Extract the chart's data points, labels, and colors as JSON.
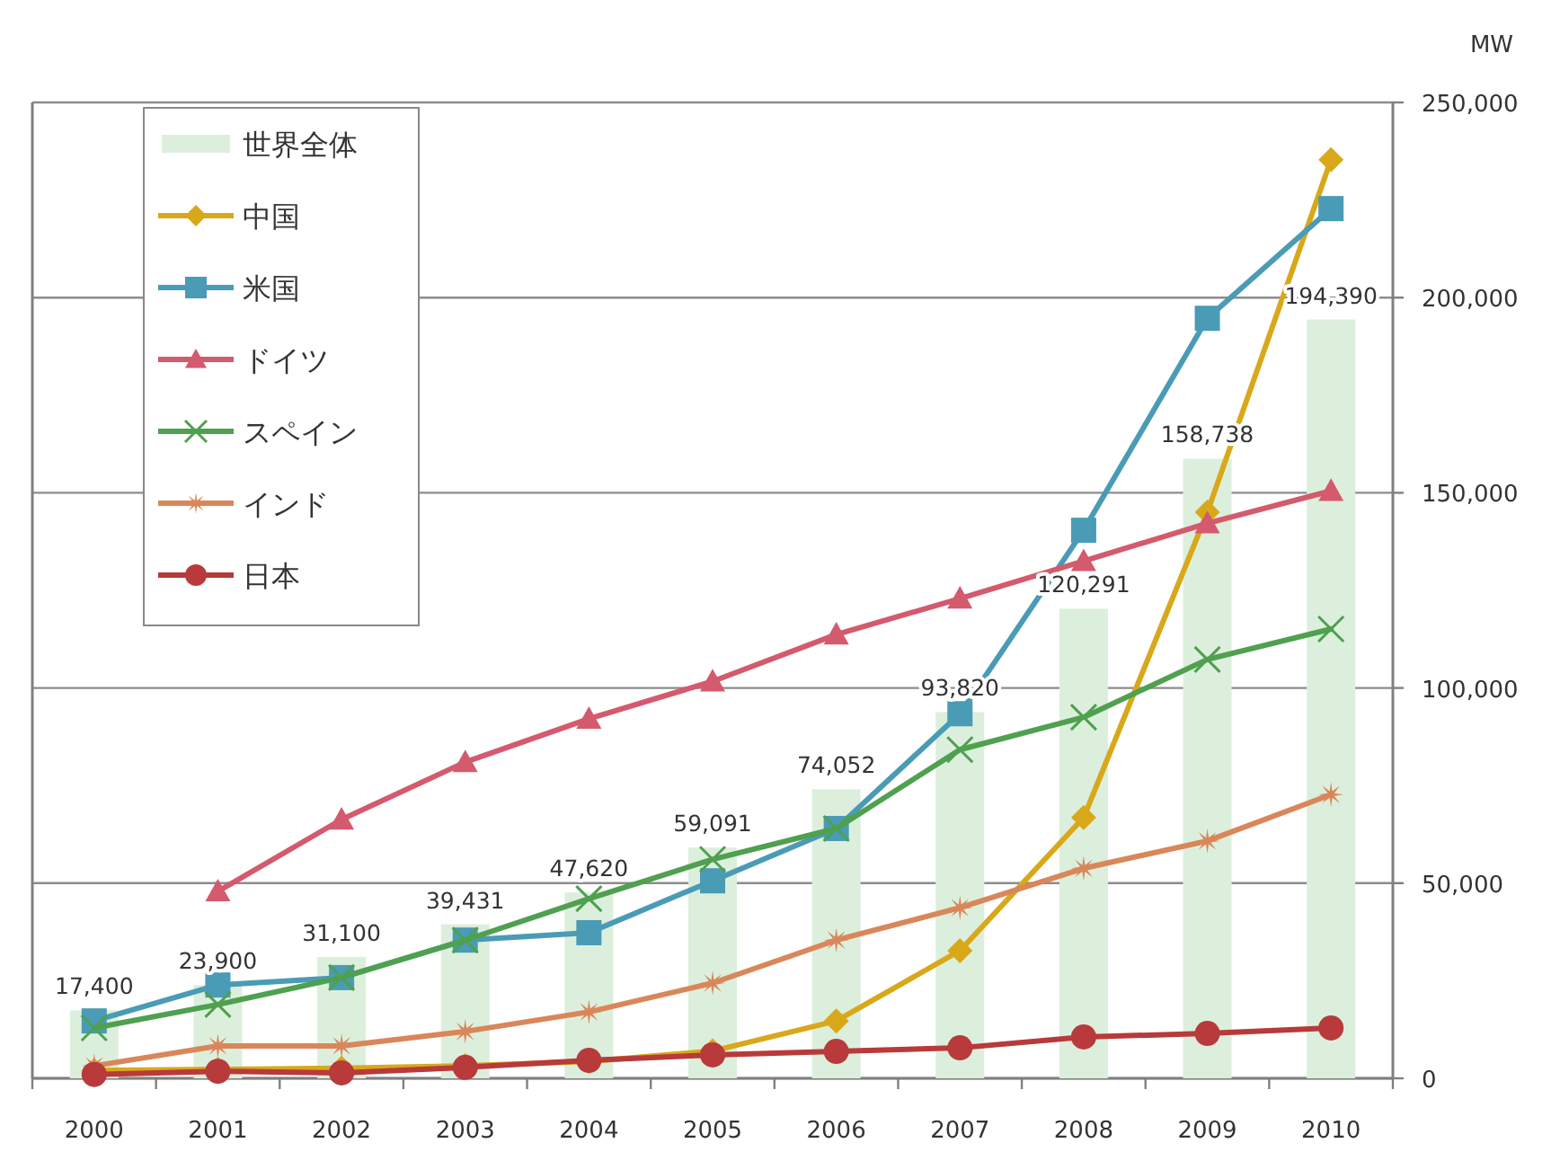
{
  "chart_data": {
    "type": "bar",
    "ylabel": "MW",
    "categories": [
      "2000",
      "2001",
      "2002",
      "2003",
      "2004",
      "2005",
      "2006",
      "2007",
      "2008",
      "2009",
      "2010"
    ],
    "ylim": [
      0,
      250000
    ],
    "yticks": [
      0,
      {
        "value": 50000,
        "label": "50,000"
      },
      {
        "value": 100000,
        "label": "100,000"
      },
      {
        "value": 150000,
        "label": "150,000"
      },
      {
        "value": 200000,
        "label": "200,000"
      },
      {
        "value": 250000,
        "label": "250,000"
      }
    ],
    "grid": "y",
    "legend": "top left",
    "series": [
      {
        "name": "世界全体",
        "color": "#dcefdc",
        "values": [
          17400,
          23900,
          31100,
          39431,
          47620,
          59091,
          74052,
          93820,
          120291,
          158738,
          194390
        ],
        "value_labels": [
          "17,400",
          "23,900",
          "31,100",
          "39,431",
          "47,620",
          "59,091",
          "74,052",
          "93,820",
          "120,291",
          "158,738",
          "194,390"
        ]
      },
      {
        "name": "中国",
        "type": "line",
        "color": "#d9a81a",
        "marker": "diamond",
        "values": [
          2000,
          2300,
          2600,
          3200,
          4300,
          7000,
          14700,
          32700,
          66800,
          145000,
          235300
        ]
      },
      {
        "name": "米国",
        "type": "line",
        "color": "#4a9bb5",
        "marker": "square",
        "values": [
          14700,
          23900,
          25800,
          35400,
          37300,
          50600,
          64000,
          93400,
          140400,
          194700,
          222800
        ]
      },
      {
        "name": "ドイツ",
        "type": "line",
        "color": "#d45a6e",
        "marker": "triangle",
        "values": [
          null,
          47900,
          66300,
          81000,
          92100,
          101700,
          113700,
          122900,
          132500,
          142200,
          150500
        ]
      },
      {
        "name": "スペイン",
        "type": "line",
        "color": "#4fa04f",
        "marker": "cross",
        "values": [
          12900,
          18900,
          25800,
          35400,
          46000,
          56100,
          64000,
          84200,
          92500,
          107300,
          115100
        ]
      },
      {
        "name": "インド",
        "type": "line",
        "color": "#d9875a",
        "marker": "star",
        "values": [
          3200,
          8300,
          8300,
          12000,
          17000,
          24400,
          35400,
          43700,
          53800,
          60800,
          72700
        ]
      },
      {
        "name": "日本",
        "type": "line",
        "color": "#b83a3a",
        "marker": "circle",
        "values": [
          1000,
          1800,
          1400,
          2800,
          4600,
          6000,
          6900,
          7800,
          10600,
          11500,
          12900
        ]
      }
    ]
  }
}
